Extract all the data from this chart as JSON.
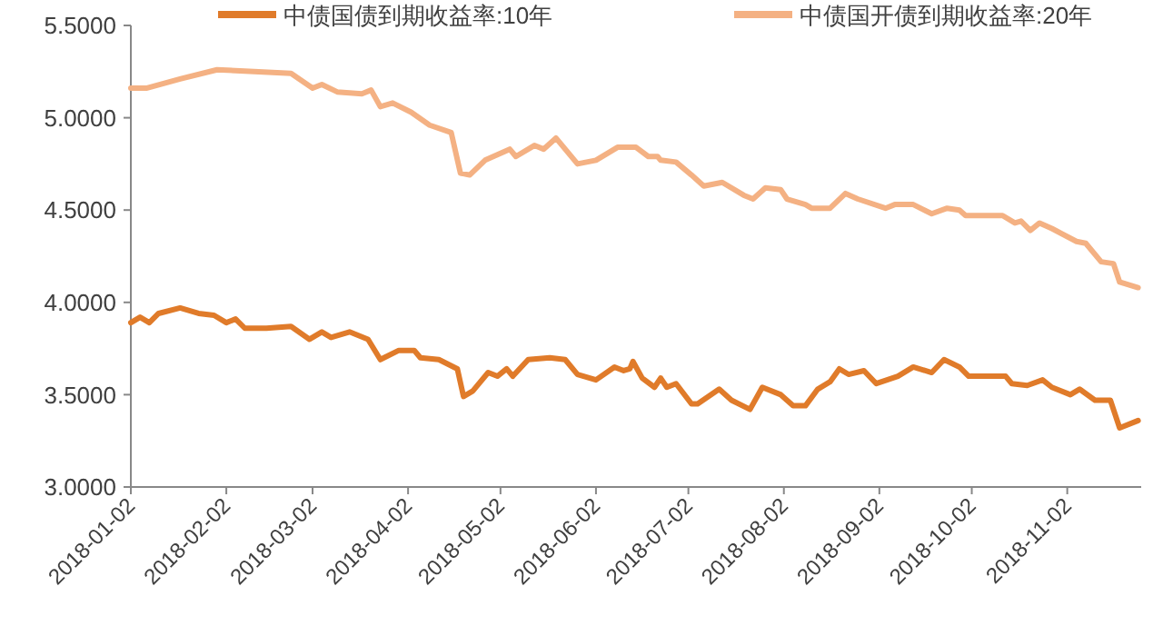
{
  "chart_data": {
    "type": "line",
    "legend": "top",
    "grid": false,
    "marker": "none",
    "line_style": "solid",
    "xlim": [
      "2018-01-02",
      "2018-11-26"
    ],
    "xticks": [
      "2018-01-02",
      "2018-02-02",
      "2018-03-02",
      "2018-04-02",
      "2018-05-02",
      "2018-06-02",
      "2018-07-02",
      "2018-08-02",
      "2018-09-02",
      "2018-10-02",
      "2018-11-02"
    ],
    "ylim": [
      3,
      5.5
    ],
    "yticks": [
      {
        "value": 3,
        "label": "3.0000"
      },
      {
        "value": 3.5,
        "label": "3.5000"
      },
      {
        "value": 4,
        "label": "4.0000"
      },
      {
        "value": 4.5,
        "label": "4.5000"
      },
      {
        "value": 5,
        "label": "5.0000"
      },
      {
        "value": 5.5,
        "label": "5.5000"
      }
    ],
    "series": [
      {
        "name": "中债国债到期收益率:10年",
        "color": "#e07b2a",
        "x": [
          "2018-01-02",
          "2018-01-05",
          "2018-01-08",
          "2018-01-11",
          "2018-01-18",
          "2018-01-24",
          "2018-01-29",
          "2018-02-02",
          "2018-02-05",
          "2018-02-08",
          "2018-02-15",
          "2018-02-23",
          "2018-03-01",
          "2018-03-05",
          "2018-03-08",
          "2018-03-14",
          "2018-03-20",
          "2018-03-24",
          "2018-03-30",
          "2018-04-04",
          "2018-04-06",
          "2018-04-12",
          "2018-04-18",
          "2018-04-20",
          "2018-04-23",
          "2018-04-28",
          "2018-05-01",
          "2018-05-04",
          "2018-05-06",
          "2018-05-11",
          "2018-05-18",
          "2018-05-23",
          "2018-05-27",
          "2018-06-02",
          "2018-06-08",
          "2018-06-11",
          "2018-06-13",
          "2018-06-14",
          "2018-06-17",
          "2018-06-21",
          "2018-06-23",
          "2018-06-25",
          "2018-06-28",
          "2018-07-03",
          "2018-07-05",
          "2018-07-12",
          "2018-07-16",
          "2018-07-22",
          "2018-07-26",
          "2018-08-01",
          "2018-08-05",
          "2018-08-09",
          "2018-08-13",
          "2018-08-17",
          "2018-08-20",
          "2018-08-23",
          "2018-08-28",
          "2018-09-01",
          "2018-09-08",
          "2018-09-13",
          "2018-09-19",
          "2018-09-23",
          "2018-09-28",
          "2018-10-01",
          "2018-10-13",
          "2018-10-15",
          "2018-10-20",
          "2018-10-25",
          "2018-10-28",
          "2018-11-03",
          "2018-11-06",
          "2018-11-11",
          "2018-11-16",
          "2018-11-19",
          "2018-11-25"
        ],
        "values": [
          3.89,
          3.92,
          3.89,
          3.94,
          3.97,
          3.94,
          3.93,
          3.89,
          3.91,
          3.86,
          3.86,
          3.87,
          3.8,
          3.84,
          3.81,
          3.84,
          3.8,
          3.69,
          3.74,
          3.74,
          3.7,
          3.69,
          3.64,
          3.49,
          3.52,
          3.62,
          3.6,
          3.64,
          3.6,
          3.69,
          3.7,
          3.69,
          3.61,
          3.58,
          3.65,
          3.63,
          3.64,
          3.68,
          3.59,
          3.54,
          3.59,
          3.54,
          3.56,
          3.45,
          3.45,
          3.53,
          3.47,
          3.42,
          3.54,
          3.5,
          3.44,
          3.44,
          3.53,
          3.57,
          3.64,
          3.61,
          3.63,
          3.56,
          3.6,
          3.65,
          3.62,
          3.69,
          3.65,
          3.6,
          3.6,
          3.56,
          3.55,
          3.58,
          3.54,
          3.5,
          3.53,
          3.47,
          3.47,
          3.32,
          3.36
        ]
      },
      {
        "name": "中债国开债到期收益率:20年",
        "color": "#f4b183",
        "x": [
          "2018-01-02",
          "2018-01-07",
          "2018-01-18",
          "2018-01-30",
          "2018-02-11",
          "2018-02-23",
          "2018-03-02",
          "2018-03-05",
          "2018-03-10",
          "2018-03-18",
          "2018-03-21",
          "2018-03-24",
          "2018-03-28",
          "2018-04-03",
          "2018-04-09",
          "2018-04-16",
          "2018-04-19",
          "2018-04-22",
          "2018-04-27",
          "2018-05-05",
          "2018-05-07",
          "2018-05-13",
          "2018-05-16",
          "2018-05-20",
          "2018-05-27",
          "2018-06-02",
          "2018-06-09",
          "2018-06-15",
          "2018-06-19",
          "2018-06-22",
          "2018-06-23",
          "2018-06-28",
          "2018-07-03",
          "2018-07-07",
          "2018-07-13",
          "2018-07-20",
          "2018-07-23",
          "2018-07-27",
          "2018-08-01",
          "2018-08-03",
          "2018-08-09",
          "2018-08-11",
          "2018-08-17",
          "2018-08-22",
          "2018-08-26",
          "2018-09-04",
          "2018-09-07",
          "2018-09-13",
          "2018-09-19",
          "2018-09-24",
          "2018-09-28",
          "2018-09-30",
          "2018-10-12",
          "2018-10-16",
          "2018-10-18",
          "2018-10-21",
          "2018-10-24",
          "2018-10-28",
          "2018-11-05",
          "2018-11-08",
          "2018-11-13",
          "2018-11-17",
          "2018-11-19",
          "2018-11-25"
        ],
        "values": [
          5.16,
          5.16,
          5.21,
          5.26,
          5.25,
          5.24,
          5.16,
          5.18,
          5.14,
          5.13,
          5.15,
          5.06,
          5.08,
          5.03,
          4.96,
          4.92,
          4.7,
          4.69,
          4.77,
          4.83,
          4.79,
          4.85,
          4.83,
          4.89,
          4.75,
          4.77,
          4.84,
          4.84,
          4.79,
          4.79,
          4.77,
          4.76,
          4.69,
          4.63,
          4.65,
          4.58,
          4.56,
          4.62,
          4.61,
          4.56,
          4.53,
          4.51,
          4.51,
          4.59,
          4.56,
          4.51,
          4.53,
          4.53,
          4.48,
          4.51,
          4.5,
          4.47,
          4.47,
          4.43,
          4.44,
          4.39,
          4.43,
          4.4,
          4.33,
          4.32,
          4.22,
          4.21,
          4.11,
          4.08
        ]
      }
    ]
  }
}
